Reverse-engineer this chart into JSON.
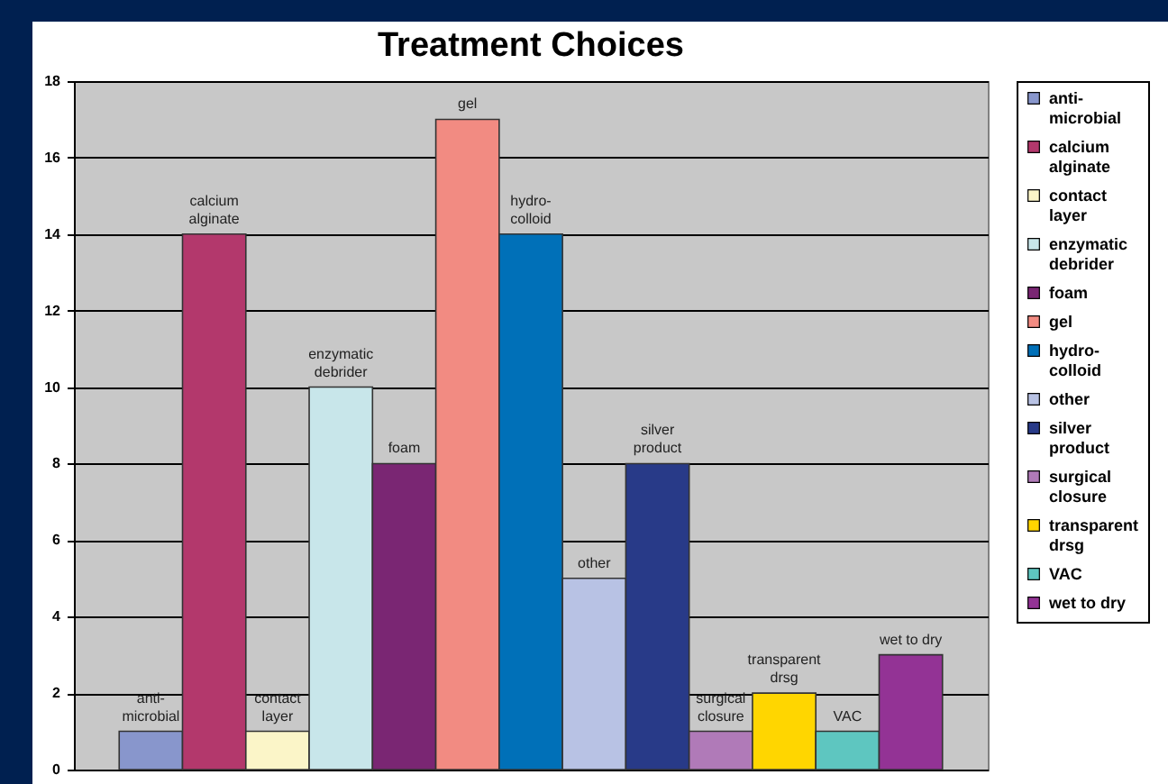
{
  "chart_data": {
    "type": "bar",
    "title": "Treatment Choices",
    "categories": [
      null
    ],
    "series": [
      {
        "name": "anti-microbial",
        "color": "#8896cc",
        "values": [
          1
        ]
      },
      {
        "name": "calcium alginate",
        "color": "#b3386c",
        "values": [
          14
        ]
      },
      {
        "name": "contact layer",
        "color": "#fbf5c8",
        "values": [
          1
        ]
      },
      {
        "name": "enzymatic debrider",
        "color": "#c8e6ea",
        "values": [
          10
        ]
      },
      {
        "name": "foam",
        "color": "#7a2673",
        "values": [
          8
        ]
      },
      {
        "name": "gel",
        "color": "#f28b82",
        "values": [
          17
        ]
      },
      {
        "name": "hydro-colloid",
        "color": "#0070b8",
        "values": [
          14
        ]
      },
      {
        "name": "other",
        "color": "#b8c2e4",
        "values": [
          5
        ]
      },
      {
        "name": "silver product",
        "color": "#283a88",
        "values": [
          8
        ]
      },
      {
        "name": "surgical closure",
        "color": "#b07ab8",
        "values": [
          1
        ]
      },
      {
        "name": "transparent drsg",
        "color": "#ffd600",
        "values": [
          2
        ]
      },
      {
        "name": "VAC",
        "color": "#5ec6c0",
        "values": [
          1
        ]
      },
      {
        "name": "wet to dry",
        "color": "#933395",
        "values": [
          3
        ]
      }
    ],
    "ylim": [
      0,
      18
    ],
    "yticks": [
      0,
      2,
      4,
      6,
      8,
      10,
      12,
      14,
      16,
      18
    ],
    "grid": true,
    "legend": "right"
  }
}
